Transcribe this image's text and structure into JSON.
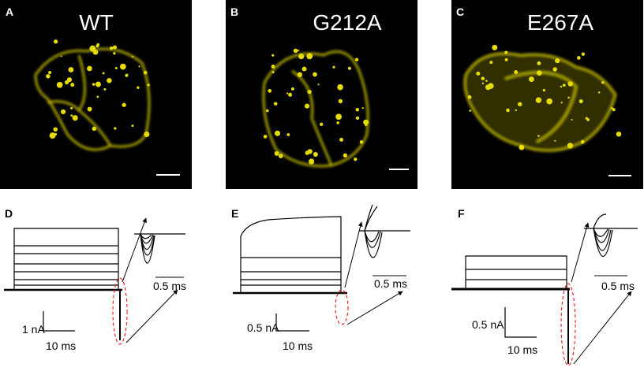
{
  "panels": [
    {
      "letter": "A",
      "title": "WT"
    },
    {
      "letter": "B",
      "title": "G212A"
    },
    {
      "letter": "C",
      "title": "E267A"
    },
    {
      "letter": "D",
      "current_scale": "1 nA",
      "time_scale": "10 ms",
      "inset_scale": "0.5 ms"
    },
    {
      "letter": "E",
      "current_scale": "0.5 nA",
      "time_scale": "10 ms",
      "inset_scale": "0.5 ms"
    },
    {
      "letter": "F",
      "current_scale": "0.5 nA",
      "time_scale": "10 ms",
      "inset_scale": "0.5 ms"
    }
  ]
}
